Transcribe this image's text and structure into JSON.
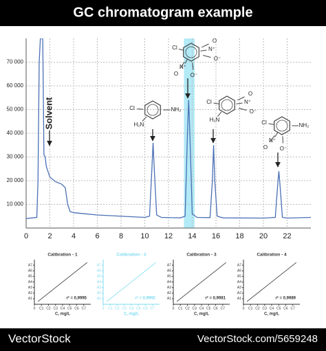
{
  "header": {
    "title": "GC chromatogram example"
  },
  "chart_data": [
    {
      "type": "line",
      "annotations": [
        "Solvent"
      ],
      "molecules": [
        [
          "Cl",
          "NH₂",
          "H₂N"
        ],
        [
          "Cl",
          "N⁺",
          "O⁻",
          "O",
          "N⁺",
          "O⁻",
          "O"
        ],
        [
          "Cl",
          "H₂N",
          "N⁺",
          "O⁻",
          "O"
        ],
        [
          "Cl",
          "NH₂",
          "N⁺",
          "O⁻",
          "O"
        ]
      ],
      "highlight": [
        13.3,
        14.2
      ],
      "highlight_color": "#7fdcf0",
      "series": [
        {
          "color": "#4a6fb5",
          "x": [
            0,
            0.9,
            1.0,
            1.1,
            1.2,
            1.4,
            1.5,
            1.6,
            1.7,
            2.0,
            2.5,
            3.0,
            3.3,
            3.5,
            3.7,
            4.0,
            6,
            8,
            10,
            10.4,
            10.6,
            10.7,
            10.8,
            11.0,
            11.4,
            13,
            13.4,
            13.6,
            13.7,
            13.8,
            14.0,
            14.4,
            15.5,
            15.7,
            15.8,
            15.9,
            16.1,
            16.6,
            20,
            21.0,
            21.2,
            21.3,
            21.4,
            21.6,
            22,
            24
          ],
          "values": [
            4000,
            4500,
            20000,
            70000,
            80000,
            80000,
            31000,
            30000,
            26000,
            21500,
            19500,
            18500,
            17000,
            10000,
            7000,
            6500,
            5500,
            5000,
            4500,
            5000,
            25000,
            36000,
            25000,
            5500,
            4500,
            4300,
            5000,
            40000,
            54000,
            40000,
            6000,
            4500,
            4400,
            20000,
            35000,
            20000,
            5000,
            4300,
            4200,
            4500,
            18000,
            24000,
            18000,
            4500,
            4200,
            4500
          ]
        }
      ],
      "xlim": [
        0,
        24
      ],
      "xticks": [
        0,
        2,
        4,
        6,
        8,
        10,
        12,
        14,
        16,
        18,
        20,
        22
      ],
      "ylim": [
        0,
        80000
      ],
      "yticks": [
        {
          "value": 10000,
          "label": "10 000"
        },
        {
          "value": 20000,
          "label": "20 000"
        },
        {
          "value": 30000,
          "label": "30 000"
        },
        {
          "value": 40000,
          "label": "40 000"
        },
        {
          "value": 50000,
          "label": "50 000"
        },
        {
          "value": 60000,
          "label": "60 000"
        },
        {
          "value": 70000,
          "label": "70 000"
        }
      ],
      "grid": true
    },
    {
      "type": "line",
      "title": "Calibration - 1",
      "annotation": "r² = 0,9995",
      "x_label": "C, mg/L",
      "color": "#333333",
      "series": [
        {
          "x": [
            0.5,
            7.5
          ],
          "values": [
            0.5,
            7.5
          ]
        }
      ],
      "xlim": [
        0,
        8
      ],
      "ylim": [
        0,
        8
      ],
      "xticks": [
        {
          "value": 0,
          "label": "0"
        },
        {
          "value": 1,
          "label": "C1"
        },
        {
          "value": 2,
          "label": "C2"
        },
        {
          "value": 3,
          "label": "C3"
        },
        {
          "value": 4,
          "label": "C4"
        },
        {
          "value": 5,
          "label": "C5"
        },
        {
          "value": 6,
          "label": "C6"
        },
        {
          "value": 7,
          "label": "C7"
        }
      ],
      "yticks": [
        {
          "value": 1,
          "label": "A1"
        },
        {
          "value": 2,
          "label": "A2"
        },
        {
          "value": 3,
          "label": "A3"
        },
        {
          "value": 4,
          "label": "A4"
        },
        {
          "value": 5,
          "label": "A5"
        },
        {
          "value": 6,
          "label": "A6"
        },
        {
          "value": 7,
          "label": "A7"
        }
      ]
    },
    {
      "type": "line",
      "title": "Calibration - 2",
      "annotation": "r² = 0,9992",
      "x_label": "C, mg/L",
      "color": "#7fdcf0",
      "series": [
        {
          "x": [
            0.5,
            7.5
          ],
          "values": [
            0.5,
            7.5
          ]
        }
      ],
      "xlim": [
        0,
        8
      ],
      "ylim": [
        0,
        8
      ],
      "xticks": [
        {
          "value": 0,
          "label": "0"
        },
        {
          "value": 1,
          "label": "C1"
        },
        {
          "value": 2,
          "label": "C2"
        },
        {
          "value": 3,
          "label": "C3"
        },
        {
          "value": 4,
          "label": "C4"
        },
        {
          "value": 5,
          "label": "C5"
        },
        {
          "value": 6,
          "label": "C6"
        },
        {
          "value": 7,
          "label": "C7"
        }
      ],
      "yticks": [
        {
          "value": 1,
          "label": "A1"
        },
        {
          "value": 2,
          "label": "A2"
        },
        {
          "value": 3,
          "label": "A3"
        },
        {
          "value": 4,
          "label": "A4"
        },
        {
          "value": 5,
          "label": "A5"
        },
        {
          "value": 6,
          "label": "A6"
        },
        {
          "value": 7,
          "label": "A7"
        }
      ]
    },
    {
      "type": "line",
      "title": "Calibration - 3",
      "annotation": "r² = 0,9981",
      "x_label": "C, mg/L",
      "color": "#333333",
      "series": [
        {
          "x": [
            0.5,
            7.5
          ],
          "values": [
            0.5,
            7.5
          ]
        }
      ],
      "xlim": [
        0,
        8
      ],
      "ylim": [
        0,
        8
      ],
      "xticks": [
        {
          "value": 0,
          "label": "0"
        },
        {
          "value": 1,
          "label": "C1"
        },
        {
          "value": 2,
          "label": "C2"
        },
        {
          "value": 3,
          "label": "C3"
        },
        {
          "value": 4,
          "label": "C4"
        },
        {
          "value": 5,
          "label": "C5"
        },
        {
          "value": 6,
          "label": "C6"
        },
        {
          "value": 7,
          "label": "C7"
        }
      ],
      "yticks": [
        {
          "value": 1,
          "label": "A1"
        },
        {
          "value": 2,
          "label": "A2"
        },
        {
          "value": 3,
          "label": "A3"
        },
        {
          "value": 4,
          "label": "A4"
        },
        {
          "value": 5,
          "label": "A5"
        },
        {
          "value": 6,
          "label": "A6"
        },
        {
          "value": 7,
          "label": "A7"
        }
      ]
    },
    {
      "type": "line",
      "title": "Calibration - 4",
      "annotation": "r² = 0,9989",
      "x_label": "C, mg/L",
      "color": "#333333",
      "series": [
        {
          "x": [
            0.5,
            7.5
          ],
          "values": [
            0.5,
            7.5
          ]
        }
      ],
      "xlim": [
        0,
        8
      ],
      "ylim": [
        0,
        8
      ],
      "xticks": [
        {
          "value": 0,
          "label": "0"
        },
        {
          "value": 1,
          "label": "C1"
        },
        {
          "value": 2,
          "label": "C2"
        },
        {
          "value": 3,
          "label": "C3"
        },
        {
          "value": 4,
          "label": "C4"
        },
        {
          "value": 5,
          "label": "C5"
        },
        {
          "value": 6,
          "label": "C6"
        },
        {
          "value": 7,
          "label": "C7"
        }
      ],
      "yticks": [
        {
          "value": 1,
          "label": "A1"
        },
        {
          "value": 2,
          "label": "A2"
        },
        {
          "value": 3,
          "label": "A3"
        },
        {
          "value": 4,
          "label": "A4"
        },
        {
          "value": 5,
          "label": "A5"
        },
        {
          "value": 6,
          "label": "A6"
        },
        {
          "value": 7,
          "label": "A7"
        }
      ]
    }
  ],
  "footer": {
    "brand": "VectorStock",
    "url": "VectorStock.com/5659248"
  }
}
